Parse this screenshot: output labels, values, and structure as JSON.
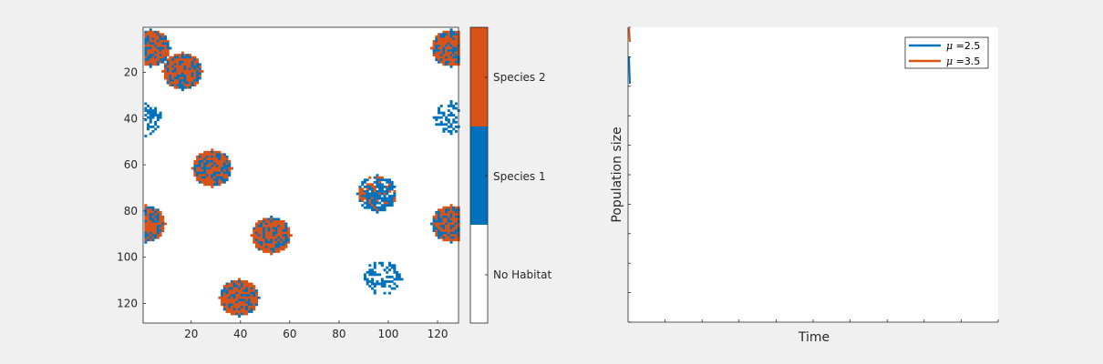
{
  "colors": {
    "background": "#f0f0f0",
    "axes_bg": "#ffffff",
    "axis": "#262626",
    "no_habitat": "#ffffff",
    "species1": "#0072bd",
    "species2": "#d95319"
  },
  "chart_data": [
    {
      "type": "heatmap",
      "title": "",
      "xlabel": "",
      "ylabel": "",
      "xlim": [
        0.5,
        128.5
      ],
      "ylim": [
        0.5,
        128.5
      ],
      "y_reversed": true,
      "grid": false,
      "xticks": [
        20,
        40,
        60,
        80,
        100,
        120
      ],
      "yticks": [
        20,
        40,
        60,
        80,
        100,
        120
      ],
      "categories": [
        "No Habitat",
        "Species 1",
        "Species 2"
      ],
      "colorbar": {
        "position": "right",
        "labels": [
          "Species 2",
          "Species 1",
          "No Habitat"
        ]
      },
      "patches": [
        {
          "cx": 3,
          "cy": 9,
          "r": 8,
          "composition": "mixed"
        },
        {
          "cx": 16,
          "cy": 19,
          "r": 8,
          "composition": "mixed"
        },
        {
          "cx": 1,
          "cy": 40,
          "r": 7,
          "composition": "species1-sparse"
        },
        {
          "cx": 28,
          "cy": 61,
          "r": 8,
          "composition": "mixed"
        },
        {
          "cx": 1,
          "cy": 85,
          "r": 8,
          "composition": "mixed"
        },
        {
          "cx": 52,
          "cy": 90,
          "r": 8,
          "composition": "mixed"
        },
        {
          "cx": 39,
          "cy": 117,
          "r": 8,
          "composition": "mixed"
        },
        {
          "cx": 125,
          "cy": 9,
          "r": 8,
          "composition": "mixed"
        },
        {
          "cx": 125,
          "cy": 39,
          "r": 7,
          "composition": "species1-sparse"
        },
        {
          "cx": 95,
          "cy": 72,
          "r": 8,
          "composition": "species1-dominant"
        },
        {
          "cx": 125,
          "cy": 85,
          "r": 8,
          "composition": "mixed"
        },
        {
          "cx": 97,
          "cy": 109,
          "r": 8,
          "composition": "species1-sparse"
        }
      ]
    },
    {
      "type": "line",
      "title": "",
      "xlabel": "Time",
      "ylabel": "Population size",
      "grid": false,
      "tick_labels_shown": false,
      "legend": {
        "position": "top-right"
      },
      "series": [
        {
          "name": "μ =2.5",
          "mu_symbol": "μ",
          "name_rest": " =2.5",
          "color": "#0072bd"
        },
        {
          "name": "μ =3.5",
          "mu_symbol": "μ",
          "name_rest": " =3.5",
          "color": "#d95319"
        }
      ]
    }
  ]
}
